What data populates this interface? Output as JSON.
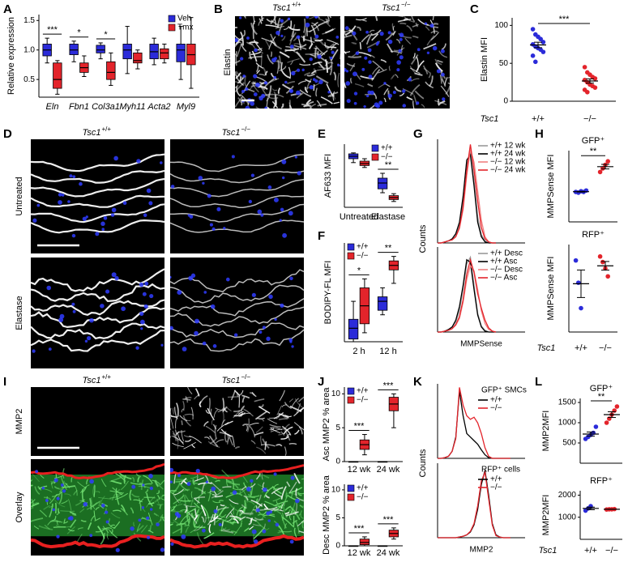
{
  "chart_data": [
    {
      "panel": "A",
      "type": "box",
      "ylabel": "Relative expression",
      "categories": [
        "Eln",
        "Fbn1",
        "Col3a1",
        "Myh11",
        "Acta2",
        "Myl9"
      ],
      "category_style": "italic",
      "series": [
        {
          "name": "Veh",
          "color": "#2b2bd9",
          "values": [
            [
              0.78,
              0.9,
              1.0,
              1.1,
              1.2
            ],
            [
              0.8,
              0.92,
              1.0,
              1.1,
              1.15
            ],
            [
              0.85,
              0.95,
              1.0,
              1.08,
              1.12
            ],
            [
              0.6,
              0.85,
              1.0,
              1.1,
              1.4
            ],
            [
              0.75,
              0.85,
              0.97,
              1.1,
              1.2
            ],
            [
              0.5,
              0.8,
              1.0,
              1.1,
              1.4
            ]
          ]
        },
        {
          "name": "Tmx",
          "color": "#e3242b",
          "values": [
            [
              0.25,
              0.35,
              0.5,
              0.78,
              0.82
            ],
            [
              0.55,
              0.62,
              0.7,
              0.78,
              0.9
            ],
            [
              0.4,
              0.5,
              0.62,
              0.8,
              0.95
            ],
            [
              0.68,
              0.78,
              0.82,
              0.95,
              1.0
            ],
            [
              0.78,
              0.85,
              0.95,
              1.02,
              1.1
            ],
            [
              0.35,
              0.75,
              0.92,
              1.1,
              1.55
            ]
          ]
        }
      ],
      "ylim": [
        0.2,
        1.6
      ],
      "yticks": [
        0.5,
        {
          "value": 1,
          "label": "1.0"
        },
        1.5
      ],
      "significance": [
        "***",
        "*",
        "*",
        null,
        null,
        null
      ],
      "legend": "upper right"
    },
    {
      "panel": "B",
      "type": "image",
      "columns": [
        {
          "gene": "Tsc1",
          "genotype": "+/+"
        },
        {
          "gene": "Tsc1",
          "genotype": "−/−"
        }
      ],
      "rows": [
        "Elastin"
      ]
    },
    {
      "panel": "C",
      "type": "dot",
      "ylabel": "Elastin MFI",
      "gene": "Tsc1",
      "groups": [
        "+/+",
        "−/−"
      ],
      "series": [
        {
          "color": "#2b2bd9",
          "values": [
            95,
            88,
            85,
            82,
            78,
            75,
            72,
            70,
            68,
            65,
            60,
            52
          ],
          "mean": 74.2,
          "sem": 3.6
        },
        {
          "color": "#e3242b",
          "values": [
            45,
            38,
            35,
            32,
            30,
            28,
            25,
            22,
            20,
            18,
            15,
            12
          ],
          "mean": 26.7,
          "sem": 2.8
        }
      ],
      "ylim": [
        0,
        110
      ],
      "yticks": [
        0,
        50,
        100
      ],
      "significance": "***"
    },
    {
      "panel": "D",
      "type": "image",
      "columns": [
        {
          "gene": "Tsc1",
          "genotype": "+/+"
        },
        {
          "gene": "Tsc1",
          "genotype": "−/−"
        }
      ],
      "rows": [
        "Untreated",
        "Elastase"
      ]
    },
    {
      "panel": "E",
      "type": "box",
      "ylabel": "AF633 MFI",
      "categories": [
        "Untreated",
        "Elastase"
      ],
      "series": [
        {
          "name": "+/+",
          "color": "#2b2bd9",
          "values": [
            [
              0.92,
              1.0,
              1.05,
              1.1,
              1.12
            ],
            [
              0.3,
              0.38,
              0.5,
              0.6,
              0.7
            ]
          ]
        },
        {
          "name": "−/−",
          "color": "#e3242b",
          "values": [
            [
              0.82,
              0.86,
              0.9,
              0.95,
              1.0
            ],
            [
              0.12,
              0.16,
              0.2,
              0.24,
              0.28
            ]
          ]
        }
      ],
      "ylim": [
        0,
        1.3
      ],
      "significance": [
        null,
        "**"
      ],
      "legend": "upper right"
    },
    {
      "panel": "F",
      "type": "box",
      "ylabel": "BODIPY-FL MFI",
      "categories": [
        "2 h",
        "12 h"
      ],
      "series": [
        {
          "name": "+/+",
          "color": "#2b2bd9",
          "values": [
            [
              0,
              0.3,
              1.5,
              2.5,
              4.5
            ],
            [
              3,
              3.5,
              4.5,
              5,
              6
            ]
          ]
        },
        {
          "name": "−/−",
          "color": "#e3242b",
          "values": [
            [
              1,
              2,
              4,
              6,
              7
            ],
            [
              6.5,
              8,
              8.5,
              9,
              9.5
            ]
          ]
        }
      ],
      "ylim": [
        0,
        11
      ],
      "significance": [
        "*",
        "**"
      ],
      "legend": "upper left"
    },
    {
      "panel": "G",
      "type": "line",
      "ylabel": "Counts",
      "x": [
        0,
        1,
        2,
        3,
        4,
        5,
        6,
        7,
        8,
        9,
        10,
        11,
        12,
        13,
        14,
        15,
        16
      ],
      "xlim": [
        0,
        24
      ],
      "ylim": [
        0,
        100
      ],
      "series": [
        {
          "name": "+/+ 12 wk",
          "color": "#999999",
          "values": [
            0,
            0,
            1,
            2,
            4,
            8,
            18,
            40,
            75,
            88,
            60,
            25,
            8,
            2,
            0,
            0,
            0
          ]
        },
        {
          "name": "+/+ 24 wk",
          "color": "#000000",
          "values": [
            0,
            0,
            1,
            2,
            4,
            9,
            20,
            45,
            80,
            85,
            55,
            20,
            6,
            1,
            0,
            0,
            0
          ]
        },
        {
          "name": "−/− 12 wk",
          "color": "#f08080",
          "values": [
            0,
            0,
            1,
            2,
            3,
            6,
            14,
            32,
            65,
            90,
            78,
            50,
            22,
            6,
            1,
            0,
            0
          ]
        },
        {
          "name": "−/− 24 wk",
          "color": "#e3242b",
          "values": [
            0,
            0,
            1,
            2,
            3,
            6,
            15,
            35,
            70,
            95,
            70,
            40,
            15,
            4,
            1,
            0,
            0
          ]
        }
      ]
    },
    {
      "type": "line",
      "xlabel": "MMPSense",
      "x": [
        0,
        1,
        2,
        3,
        4,
        5,
        6,
        7,
        8,
        9,
        10,
        11,
        12,
        13,
        14,
        15,
        16
      ],
      "xlim": [
        0,
        24
      ],
      "ylim": [
        0,
        100
      ],
      "series": [
        {
          "name": "+/+ Desc",
          "color": "#999999",
          "values": [
            0,
            0,
            1,
            3,
            6,
            12,
            25,
            50,
            80,
            88,
            55,
            22,
            7,
            2,
            0,
            0,
            0
          ]
        },
        {
          "name": "+/+ Asc",
          "color": "#000000",
          "values": [
            0,
            0,
            1,
            3,
            6,
            14,
            30,
            55,
            85,
            82,
            50,
            20,
            6,
            1,
            0,
            0,
            0
          ]
        },
        {
          "name": "−/− Desc",
          "color": "#f08080",
          "values": [
            0,
            0,
            1,
            2,
            4,
            8,
            16,
            35,
            62,
            78,
            72,
            50,
            25,
            10,
            3,
            1,
            0
          ]
        },
        {
          "name": "−/− Asc",
          "color": "#e3242b",
          "values": [
            0,
            0,
            1,
            2,
            4,
            9,
            18,
            38,
            68,
            85,
            70,
            45,
            28,
            14,
            5,
            1,
            0
          ]
        }
      ]
    },
    {
      "panel": "H",
      "type": "dot",
      "title": "GFP⁺",
      "ylabel": "MMPSense MFI",
      "series": [
        {
          "color": "#2b2bd9",
          "values": [
            42,
            41,
            43,
            42,
            44
          ],
          "mean": 42.4,
          "sem": 0.5
        },
        {
          "color": "#e3242b",
          "values": [
            70,
            75,
            80,
            85
          ],
          "mean": 77.5,
          "sem": 3.2
        }
      ],
      "ylim": [
        0,
        100
      ],
      "significance": "**"
    },
    {
      "type": "dot",
      "title": "RFP⁺",
      "ylabel": "MMPSense MFI",
      "gene": "Tsc1",
      "groups": [
        "+/+",
        "−/−"
      ],
      "series": [
        {
          "color": "#2b2bd9",
          "values": [
            90,
            62,
            30
          ],
          "mean": 60.7,
          "sem": 17.3
        },
        {
          "color": "#e3242b",
          "values": [
            95,
            88,
            80,
            70
          ],
          "mean": 83.3,
          "sem": 5.4
        }
      ],
      "ylim": [
        0,
        110
      ]
    },
    {
      "panel": "I",
      "type": "image",
      "columns": [
        {
          "gene": "Tsc1",
          "genotype": "+/+"
        },
        {
          "gene": "Tsc1",
          "genotype": "−/−"
        }
      ],
      "rows": [
        "MMP2",
        "Overlay"
      ]
    },
    {
      "panel": "J",
      "type": "box",
      "ylabel": "Asc MMP2 % area",
      "categories": [
        "12 wk",
        "24 wk"
      ],
      "series": [
        {
          "name": "+/+",
          "color": "#2b2bd9",
          "values": [
            [
              0,
              0,
              0,
              0,
              0
            ],
            [
              0,
              0,
              0,
              0,
              0
            ]
          ]
        },
        {
          "name": "−/−",
          "color": "#e3242b",
          "values": [
            [
              1,
              1.8,
              2.5,
              3.2,
              4
            ],
            [
              5,
              7.5,
              8.5,
              9.5,
              10
            ]
          ]
        }
      ],
      "ylim": [
        0,
        11
      ],
      "yticks": [
        0,
        5,
        10
      ],
      "significance": [
        "***",
        "***"
      ],
      "legend": "upper left"
    },
    {
      "type": "box",
      "ylabel": "Desc MMP2 % area",
      "categories": [
        "12 wk",
        "24 wk"
      ],
      "series": [
        {
          "name": "+/+",
          "color": "#2b2bd9",
          "values": [
            [
              0,
              0,
              0,
              0,
              0
            ],
            [
              0,
              0,
              0,
              0,
              0
            ]
          ]
        },
        {
          "name": "−/−",
          "color": "#e3242b",
          "values": [
            [
              0,
              0.2,
              0.6,
              1.2,
              1.6
            ],
            [
              1.2,
              1.6,
              2.2,
              2.8,
              3.2
            ]
          ]
        }
      ],
      "ylim": [
        0,
        11
      ],
      "yticks": [
        0,
        5,
        10
      ],
      "significance": [
        "***",
        "***"
      ],
      "legend": "upper left"
    },
    {
      "panel": "K",
      "type": "line",
      "ylabel": "Counts",
      "legend_title": "GFP⁺ SMCs",
      "x": [
        0,
        1,
        2,
        3,
        4,
        5,
        6,
        7,
        8,
        9,
        10,
        11,
        12,
        13,
        14,
        15,
        16,
        17,
        18,
        19,
        20
      ],
      "xlim": [
        0,
        24
      ],
      "ylim": [
        0,
        105
      ],
      "series": [
        {
          "name": "+/+",
          "color": "#000000",
          "values": [
            0,
            0,
            1,
            3,
            10,
            30,
            95,
            60,
            35,
            30,
            25,
            20,
            12,
            5,
            1,
            0,
            0,
            0,
            0,
            0,
            0
          ]
        },
        {
          "name": "−/−",
          "color": "#e3242b",
          "values": [
            0,
            0,
            1,
            3,
            10,
            28,
            100,
            75,
            60,
            55,
            58,
            50,
            35,
            15,
            3,
            0,
            0,
            0,
            0,
            0,
            0
          ]
        }
      ]
    },
    {
      "type": "line",
      "xlabel": "MMP2",
      "legend_title": "RFP⁺ cells",
      "x": [
        0,
        1,
        2,
        3,
        4,
        5,
        6,
        7,
        8,
        9,
        10,
        11,
        12,
        13,
        14,
        15,
        16,
        17,
        18,
        19,
        20
      ],
      "xlim": [
        0,
        24
      ],
      "ylim": [
        0,
        105
      ],
      "series": [
        {
          "name": "+/+",
          "color": "#000000",
          "values": [
            0,
            0,
            0,
            0,
            0,
            0,
            1,
            2,
            4,
            8,
            18,
            40,
            75,
            95,
            60,
            20,
            4,
            1,
            0,
            0,
            0
          ]
        },
        {
          "name": "−/−",
          "color": "#e3242b",
          "values": [
            0,
            0,
            0,
            0,
            0,
            0,
            1,
            2,
            4,
            9,
            20,
            45,
            80,
            92,
            55,
            18,
            3,
            1,
            0,
            0,
            0
          ]
        }
      ]
    },
    {
      "panel": "L",
      "type": "dot",
      "title": "GFP⁺",
      "ylabel": "MMP2MFI",
      "series": [
        {
          "color": "#2b2bd9",
          "values": [
            600,
            650,
            700,
            750,
            900
          ],
          "mean": 720,
          "sem": 51
        },
        {
          "color": "#e3242b",
          "values": [
            1000,
            1100,
            1200,
            1300,
            1400
          ],
          "mean": 1200,
          "sem": 71
        }
      ],
      "ylim": [
        0,
        1600
      ],
      "yticks": [
        500,
        1000,
        1500
      ],
      "significance": "**"
    },
    {
      "type": "dot",
      "title": "RFP⁺",
      "ylabel": "MMP2MFI",
      "gene": "Tsc1",
      "groups": [
        "+/+",
        "−/−"
      ],
      "series": [
        {
          "color": "#2b2bd9",
          "values": [
            1300,
            1400,
            1500
          ],
          "mean": 1400,
          "sem": 58
        },
        {
          "color": "#e3242b",
          "values": [
            1350,
            1360,
            1360,
            1370
          ],
          "mean": 1360,
          "sem": 4
        }
      ],
      "ylim": [
        0,
        2200
      ],
      "yticks": [
        1000,
        2000
      ]
    }
  ]
}
